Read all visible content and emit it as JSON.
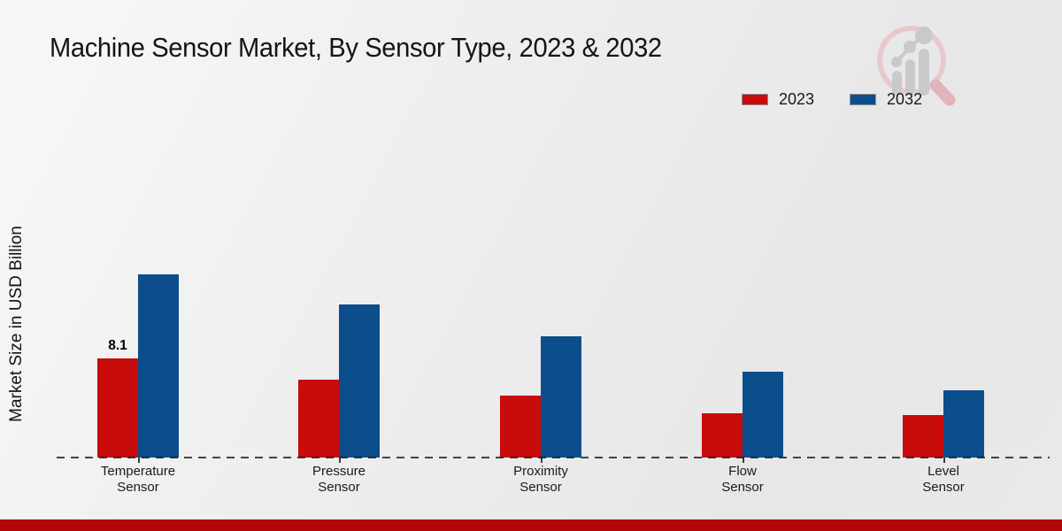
{
  "header": {
    "title": "Machine Sensor Market, By Sensor Type, 2023 & 2032"
  },
  "icons": {
    "watermark": "magnifier-bar-chart-logo"
  },
  "legend": {
    "position": "top-right",
    "items": [
      {
        "label": "2023",
        "color": "#c80b0b"
      },
      {
        "label": "2032",
        "color": "#0c4e8b"
      }
    ]
  },
  "y_axis": {
    "label": "Market Size in USD Billion"
  },
  "footer": {
    "bar_color": "#b30606"
  },
  "chart_data": {
    "type": "bar",
    "title": "Machine Sensor Market, By Sensor Type, 2023 & 2032",
    "xlabel": "",
    "ylabel": "Market Size in USD Billion",
    "categories": [
      "Temperature Sensor",
      "Pressure Sensor",
      "Proximity Sensor",
      "Flow Sensor",
      "Level Sensor"
    ],
    "series": [
      {
        "name": "2023",
        "color": "#c80b0b",
        "values": [
          8.1,
          6.4,
          5.1,
          3.6,
          3.5
        ],
        "data_labels": [
          "8.1",
          "",
          "",
          "",
          ""
        ]
      },
      {
        "name": "2032",
        "color": "#0c4e8b",
        "values": [
          15.0,
          12.5,
          9.9,
          7.0,
          5.5
        ],
        "data_labels": [
          "",
          "",
          "",
          "",
          ""
        ]
      }
    ],
    "ylim": [
      0,
      16
    ],
    "grid": false,
    "legend_position": "top-right",
    "baseline_style": "dashed"
  }
}
